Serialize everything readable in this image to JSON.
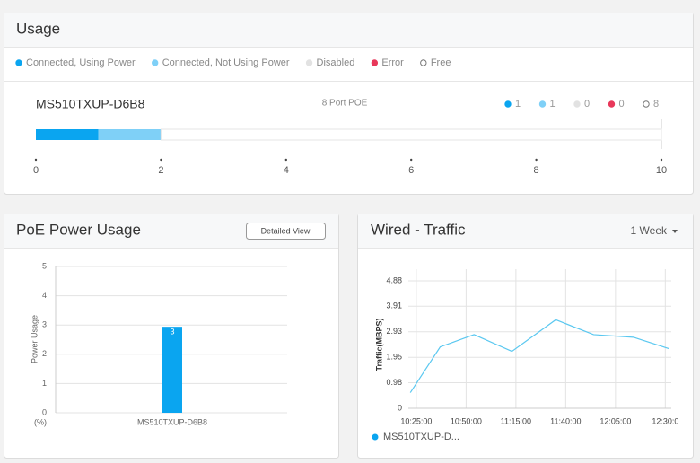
{
  "chart_data": [
    {
      "type": "stacked-bar",
      "title": "Usage",
      "category": "MS510TXUP-D6B8",
      "subtitle": "8 Port POE",
      "series": [
        {
          "name": "Connected, Using Power",
          "color": "#0aa5f0",
          "values": [
            1
          ]
        },
        {
          "name": "Connected, Not Using Power",
          "color": "#7fd0f7",
          "values": [
            1
          ]
        },
        {
          "name": "Disabled",
          "color": "#e2e2e2",
          "values": [
            0
          ]
        },
        {
          "name": "Error",
          "color": "#e8385a",
          "values": [
            0
          ]
        },
        {
          "name": "Free",
          "color": "#ffffff",
          "values": [
            8
          ]
        }
      ],
      "xlim": [
        0,
        10
      ],
      "xticks": [
        0,
        2,
        4,
        6,
        8,
        10
      ]
    },
    {
      "type": "bar",
      "title": "PoE Power Usage",
      "button": "Detailed View",
      "categories": [
        "MS510TXUP-D6B8"
      ],
      "values": [
        2.94
      ],
      "value_labels": [
        "3"
      ],
      "color": "#0aa5f0",
      "ylim": [
        0,
        5
      ],
      "yticks": [
        0,
        1,
        2,
        3,
        4,
        5
      ],
      "ylabel": "Power Usage",
      "unit_label": "(%)",
      "grid": true
    },
    {
      "type": "line",
      "title": "Wired - Traffic",
      "dropdown": "1 Week",
      "x": [
        622,
        637,
        654,
        673,
        695,
        714,
        734,
        752
      ],
      "series": [
        {
          "name": "MS510TXUP-D...",
          "color": "#5bc8f0",
          "values": [
            0.6,
            2.35,
            2.82,
            2.18,
            3.39,
            2.82,
            2.72,
            2.28
          ]
        }
      ],
      "xlim": [
        621,
        753
      ],
      "xticks": [
        {
          "value": 625,
          "label": "10:25:00"
        },
        {
          "value": 650,
          "label": "10:50:00"
        },
        {
          "value": 675,
          "label": "11:15:00"
        },
        {
          "value": 700,
          "label": "11:40:00"
        },
        {
          "value": 725,
          "label": "12:05:00"
        },
        {
          "value": 750,
          "label": "12:30:0"
        }
      ],
      "ylim": [
        0,
        4.88
      ],
      "yticks": [
        0,
        0.98,
        1.95,
        2.93,
        3.91,
        4.88
      ],
      "ylabel": "Traffic(MBPS)",
      "grid": true
    }
  ]
}
